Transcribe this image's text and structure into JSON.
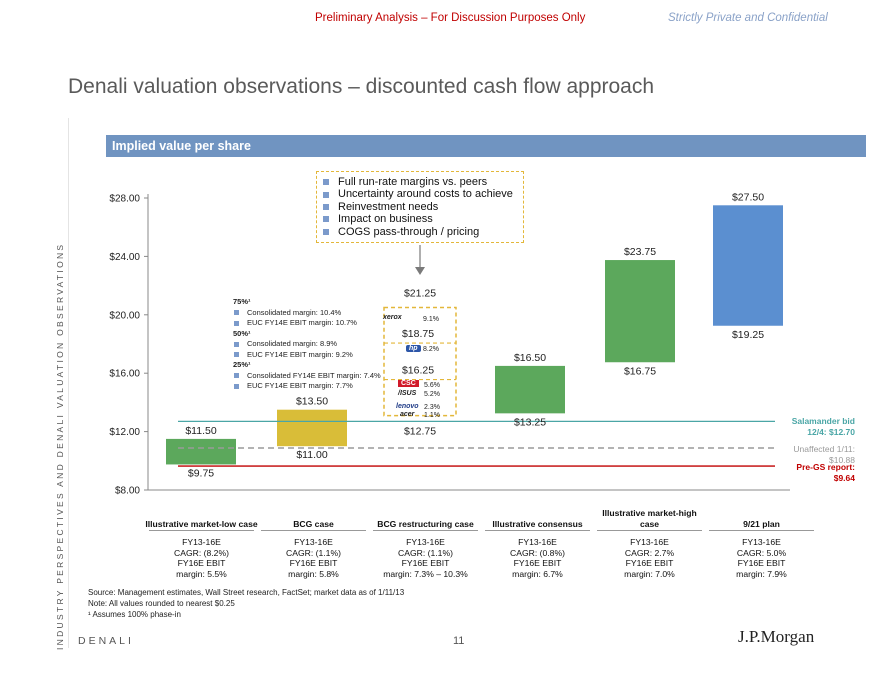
{
  "header": {
    "left": "Preliminary Analysis – For Discussion Purposes Only",
    "right": "Strictly Private and Confidential"
  },
  "page_title": "Denali valuation observations – discounted cash flow approach",
  "side_text": "INDUSTRY PERSPECTIVES AND DENALI VALUATION OBSERVATIONS",
  "band_title": "Implied value per share",
  "callout_items": [
    "Full run-rate margins vs. peers",
    "Uncertainty around costs to achieve",
    "Reinvestment needs",
    "Impact on business",
    "COGS pass-through / pricing"
  ],
  "notes": [
    {
      "type": "head",
      "text": "75%¹"
    },
    {
      "type": "item",
      "text": "Consolidated margin: 10.4%"
    },
    {
      "type": "item",
      "text": "EUC FY14E EBIT margin: 10.7%"
    },
    {
      "type": "head",
      "text": "50%¹"
    },
    {
      "type": "item",
      "text": "Consolidated margin: 8.9%"
    },
    {
      "type": "item",
      "text": "EUC FY14E EBIT margin: 9.2%"
    },
    {
      "type": "head",
      "text": "25%¹"
    },
    {
      "type": "item",
      "text": "Consolidated FY14E EBIT margin: 7.4%"
    },
    {
      "type": "item",
      "text": "EUC FY14E EBIT margin: 7.7%"
    }
  ],
  "peers": [
    {
      "name": "xerox",
      "margin": "9.1%",
      "color": "#d11a2a"
    },
    {
      "name": "hp",
      "margin": "8.2%",
      "color": "#2c56a8"
    },
    {
      "name": "CSC",
      "margin": "5.6%",
      "color": "#d11a2a"
    },
    {
      "name": "/ISUS",
      "margin": "5.2%",
      "color": "#1f3b87"
    },
    {
      "name": "lenovo",
      "margin": "2.3%",
      "color": "#1f3b87"
    },
    {
      "name": "acer",
      "margin": "1.1%",
      "color": "#1f3b87"
    }
  ],
  "reference_lines": [
    {
      "label": "Salamander bid 12/4: $12.70",
      "value": 12.7,
      "color": "#4aa6a6"
    },
    {
      "label": "Unaffected 1/11: $10.88",
      "value": 10.88,
      "color": "#9a9a9a"
    },
    {
      "label": "Pre-GS report: $9.64",
      "value": 9.64,
      "color": "#c00000"
    }
  ],
  "chart_data": {
    "type": "bar",
    "title": "Implied value per share",
    "ylim": [
      8,
      28
    ],
    "yticks": [
      8,
      12,
      16,
      20,
      24,
      28
    ],
    "ytick_labels": [
      "$8.00",
      "$12.00",
      "$16.00",
      "$20.00",
      "$24.00",
      "$28.00"
    ],
    "categories": [
      "Illustrative market-low case",
      "BCG case",
      "BCG restructuring case",
      "Illustrative consensus",
      "Illustrative market-high case",
      "9/21 plan"
    ],
    "lows": [
      9.75,
      11.0,
      12.75,
      13.25,
      16.75,
      19.25
    ],
    "highs": [
      11.5,
      13.5,
      21.25,
      16.5,
      23.75,
      27.5
    ],
    "low_labels": [
      "$9.75",
      "$11.00",
      "$12.75",
      "$13.25",
      "$16.75",
      "$19.25"
    ],
    "high_labels": [
      "$11.50",
      "$13.50",
      "$21.25",
      "$16.50",
      "$23.75",
      "$27.50"
    ],
    "mid_values": [
      16.25,
      18.75
    ],
    "mid_labels": [
      "$16.25",
      "$18.75"
    ],
    "colors": [
      "#5ca85c",
      "#d9bd38",
      "#ffffff",
      "#5ca85c",
      "#5ca85c",
      "#5b8fd0"
    ]
  },
  "categories_display": [
    {
      "label": "Illustrative market-low case",
      "line1": "FY13-16E",
      "line2": "CAGR: (8.2%)",
      "line3": "FY16E EBIT",
      "line4": "margin: 5.5%"
    },
    {
      "label": "BCG case",
      "line1": "FY13-16E",
      "line2": "CAGR: (1.1%)",
      "line3": "FY16E EBIT",
      "line4": "margin: 5.8%"
    },
    {
      "label": "BCG restructuring case",
      "line1": "FY13-16E",
      "line2": "CAGR: (1.1%)",
      "line3": "FY16E EBIT",
      "line4": "margin: 7.3% – 10.3%"
    },
    {
      "label": "Illustrative consensus",
      "line1": "FY13-16E",
      "line2": "CAGR: (0.8%)",
      "line3": "FY16E EBIT",
      "line4": "margin: 6.7%"
    },
    {
      "label": "Illustrative market-high case",
      "line1": "FY13-16E",
      "line2": "CAGR: 2.7%",
      "line3": "FY16E EBIT",
      "line4": "margin: 7.0%"
    },
    {
      "label": "9/21 plan",
      "line1": "FY13-16E",
      "line2": "CAGR: 5.0%",
      "line3": "FY16E EBIT",
      "line4": "margin: 7.9%"
    }
  ],
  "sources": [
    "Source: Management estimates, Wall Street research, FactSet; market data as of 1/11/13",
    "Note: All values rounded to nearest $0.25",
    "¹ Assumes 100% phase-in"
  ],
  "footer": {
    "left": "DENALI",
    "page": "11",
    "right": "J.P.Morgan"
  }
}
